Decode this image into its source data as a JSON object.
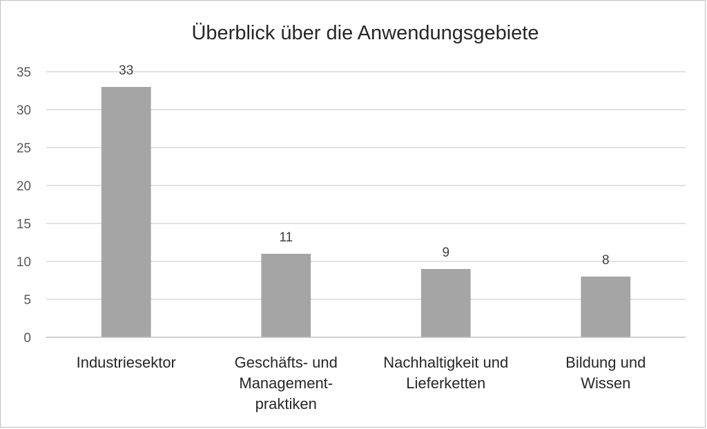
{
  "chart_data": {
    "type": "bar",
    "title": "Überblick über die Anwendungsgebiete",
    "categories": [
      [
        "Industriesektor"
      ],
      [
        "Geschäfts- und",
        "Management-",
        "praktiken"
      ],
      [
        "Nachhaltigkeit und",
        "Lieferketten"
      ],
      [
        "Bildung und",
        "Wissen"
      ]
    ],
    "values": [
      33,
      11,
      9,
      8
    ],
    "data_labels": [
      "33",
      "11",
      "9",
      "8"
    ],
    "ylim": [
      0,
      35
    ],
    "yticks": [
      0,
      5,
      10,
      15,
      20,
      25,
      30,
      35
    ],
    "xlabel": "",
    "ylabel": "",
    "grid": true,
    "legend": "none",
    "colors": {
      "bar": "#a5a5a5",
      "grid": "#d9d9d9",
      "axis": "#bfbfbf"
    }
  }
}
